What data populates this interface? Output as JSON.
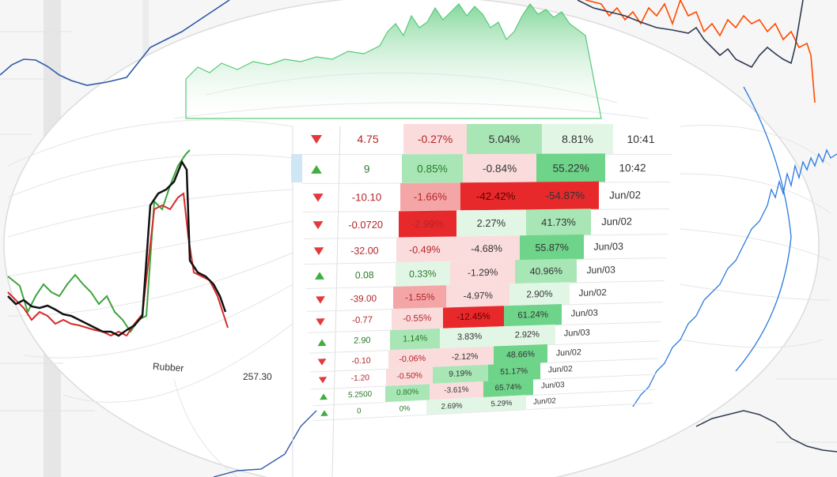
{
  "labels": {
    "rubber_label": "Rubber",
    "rubber_value": "257.30"
  },
  "table": {
    "rows": [
      {
        "dir": "down",
        "price": "4.75",
        "chg": "-0.27%",
        "c3": "5.04%",
        "c4": "8.81%",
        "time": "10:41"
      },
      {
        "dir": "up",
        "price": "9",
        "chg": "0.85%",
        "c3": "-0.84%",
        "c4": "55.22%",
        "time": "10:42"
      },
      {
        "dir": "down",
        "price": "-10.10",
        "chg": "-1.66%",
        "c3": "-42.42%",
        "c4": "-54.87%",
        "time": "Jun/02"
      },
      {
        "dir": "down",
        "price": "-0.0720",
        "chg": "-2.99%",
        "c3": "2.27%",
        "c4": "41.73%",
        "time": "Jun/02"
      },
      {
        "dir": "down",
        "price": "-32.00",
        "chg": "-0.49%",
        "c3": "-4.68%",
        "c4": "55.87%",
        "time": "Jun/03"
      },
      {
        "dir": "up",
        "price": "0.08",
        "chg": "0.33%",
        "c3": "-1.29%",
        "c4": "40.96%",
        "time": "Jun/03"
      },
      {
        "dir": "down",
        "price": "-39.00",
        "chg": "-1.55%",
        "c3": "-4.97%",
        "c4": "2.90%",
        "time": "Jun/02"
      },
      {
        "dir": "down",
        "price": "-0.77",
        "chg": "-0.55%",
        "c3": "-12.45%",
        "c4": "61.24%",
        "time": "Jun/03"
      },
      {
        "dir": "up",
        "price": "2.90",
        "chg": "1.14%",
        "c3": "3.83%",
        "c4": "2.92%",
        "time": "Jun/03"
      },
      {
        "dir": "down",
        "price": "-0.10",
        "chg": "-0.06%",
        "c3": "-2.12%",
        "c4": "48.66%",
        "time": "Jun/02"
      },
      {
        "dir": "down",
        "price": "-1.20",
        "chg": "-0.50%",
        "c3": "9.19%",
        "c4": "51.17%",
        "time": "Jun/02"
      },
      {
        "dir": "up",
        "price": "5.2500",
        "chg": "0.80%",
        "c3": "-3.61%",
        "c4": "65.74%",
        "time": "Jun/03"
      },
      {
        "dir": "up",
        "price": "0",
        "chg": "0%",
        "c3": "2.69%",
        "c4": "5.29%",
        "time": "Jun/02"
      }
    ]
  },
  "colors": {
    "up": "#3fae3f",
    "down": "#e23a3a",
    "deep_red": "#e8292b",
    "mid_red": "#f4a6a6",
    "light_red": "#fbdcdc",
    "deep_green": "#6ed48a",
    "mid_green": "#a8e6b5",
    "light_green": "#e2f6e6",
    "line_blue": "#2a6fd6",
    "line_orange": "#ff4b00",
    "line_navy": "#2f3b52"
  }
}
